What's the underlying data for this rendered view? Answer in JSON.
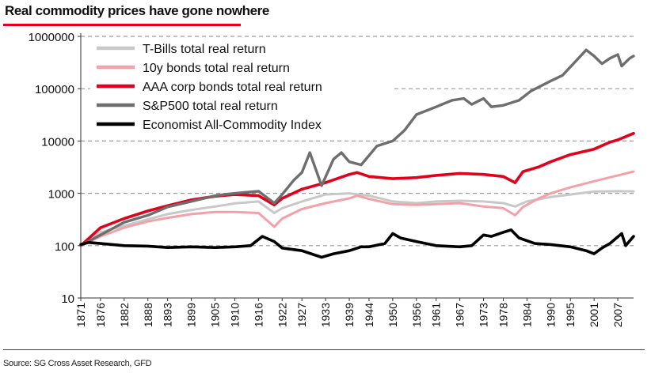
{
  "header": {
    "title": "Real commodity prices have gone nowhere"
  },
  "footer": {
    "source": "Source: SG Cross Asset Research, GFD"
  },
  "chart_data": {
    "type": "line",
    "title": "Real commodity prices have gone nowhere",
    "xlabel": "",
    "ylabel": "",
    "yscale": "log",
    "ylim": [
      10,
      1000000
    ],
    "xlim": [
      1871,
      2011
    ],
    "grid": "horizontal-dashed",
    "legend_position": "top-left",
    "yticks": [
      10,
      100,
      1000,
      10000,
      100000,
      1000000
    ],
    "ytick_labels": [
      "10",
      "100",
      "1000",
      "10000",
      "100000",
      "1000000"
    ],
    "xticks": [
      1871,
      1876,
      1882,
      1888,
      1893,
      1899,
      1905,
      1910,
      1916,
      1922,
      1927,
      1933,
      1939,
      1944,
      1950,
      1956,
      1961,
      1967,
      1973,
      1978,
      1984,
      1990,
      1995,
      2001,
      2007
    ],
    "xtick_labels": [
      "1871",
      "1876",
      "1882",
      "1888",
      "1893",
      "1899",
      "1905",
      "1910",
      "1916",
      "1922",
      "1927",
      "1933",
      "1939",
      "1944",
      "1950",
      "1956",
      "1961",
      "1967",
      "1973",
      "1978",
      "1984",
      "1990",
      "1995",
      "2001",
      "2007"
    ],
    "series": [
      {
        "name": "T-Bills total real return",
        "color": "#c8c8c8",
        "points": [
          [
            1871,
            100
          ],
          [
            1876,
            180
          ],
          [
            1882,
            240
          ],
          [
            1888,
            320
          ],
          [
            1893,
            400
          ],
          [
            1899,
            480
          ],
          [
            1905,
            560
          ],
          [
            1910,
            640
          ],
          [
            1916,
            700
          ],
          [
            1920,
            420
          ],
          [
            1922,
            520
          ],
          [
            1927,
            700
          ],
          [
            1933,
            950
          ],
          [
            1939,
            1000
          ],
          [
            1944,
            900
          ],
          [
            1950,
            700
          ],
          [
            1956,
            650
          ],
          [
            1961,
            700
          ],
          [
            1967,
            720
          ],
          [
            1973,
            700
          ],
          [
            1978,
            650
          ],
          [
            1981,
            560
          ],
          [
            1984,
            700
          ],
          [
            1990,
            850
          ],
          [
            1995,
            950
          ],
          [
            2001,
            1080
          ],
          [
            2007,
            1100
          ],
          [
            2011,
            1090
          ]
        ]
      },
      {
        "name": "10y bonds total real return",
        "color": "#f4a0a8",
        "points": [
          [
            1871,
            100
          ],
          [
            1876,
            150
          ],
          [
            1882,
            220
          ],
          [
            1888,
            290
          ],
          [
            1893,
            340
          ],
          [
            1899,
            400
          ],
          [
            1905,
            440
          ],
          [
            1910,
            440
          ],
          [
            1916,
            420
          ],
          [
            1920,
            230
          ],
          [
            1922,
            330
          ],
          [
            1927,
            500
          ],
          [
            1933,
            650
          ],
          [
            1939,
            800
          ],
          [
            1941,
            900
          ],
          [
            1944,
            780
          ],
          [
            1950,
            620
          ],
          [
            1956,
            600
          ],
          [
            1961,
            620
          ],
          [
            1967,
            650
          ],
          [
            1973,
            560
          ],
          [
            1978,
            520
          ],
          [
            1981,
            380
          ],
          [
            1983,
            550
          ],
          [
            1987,
            800
          ],
          [
            1990,
            1000
          ],
          [
            1995,
            1300
          ],
          [
            2001,
            1700
          ],
          [
            2007,
            2200
          ],
          [
            2011,
            2600
          ]
        ]
      },
      {
        "name": "AAA corp bonds total real return",
        "color": "#e2001a",
        "points": [
          [
            1871,
            100
          ],
          [
            1876,
            220
          ],
          [
            1882,
            330
          ],
          [
            1888,
            460
          ],
          [
            1893,
            580
          ],
          [
            1899,
            750
          ],
          [
            1905,
            880
          ],
          [
            1910,
            950
          ],
          [
            1916,
            900
          ],
          [
            1920,
            600
          ],
          [
            1922,
            800
          ],
          [
            1927,
            1200
          ],
          [
            1933,
            1600
          ],
          [
            1939,
            2300
          ],
          [
            1941,
            2500
          ],
          [
            1944,
            2100
          ],
          [
            1950,
            1900
          ],
          [
            1956,
            2000
          ],
          [
            1961,
            2200
          ],
          [
            1967,
            2400
          ],
          [
            1973,
            2300
          ],
          [
            1978,
            2100
          ],
          [
            1981,
            1600
          ],
          [
            1983,
            2600
          ],
          [
            1987,
            3200
          ],
          [
            1990,
            4000
          ],
          [
            1995,
            5500
          ],
          [
            2001,
            7000
          ],
          [
            2005,
            9500
          ],
          [
            2007,
            10500
          ],
          [
            2011,
            14000
          ]
        ]
      },
      {
        "name": "S&P500 total real return",
        "color": "#6e6e6e",
        "points": [
          [
            1871,
            100
          ],
          [
            1876,
            160
          ],
          [
            1882,
            280
          ],
          [
            1888,
            380
          ],
          [
            1893,
            550
          ],
          [
            1899,
            700
          ],
          [
            1905,
            900
          ],
          [
            1910,
            1000
          ],
          [
            1916,
            1100
          ],
          [
            1920,
            650
          ],
          [
            1922,
            950
          ],
          [
            1925,
            1800
          ],
          [
            1927,
            2500
          ],
          [
            1929,
            6000
          ],
          [
            1932,
            1400
          ],
          [
            1935,
            4500
          ],
          [
            1937,
            6000
          ],
          [
            1939,
            4000
          ],
          [
            1942,
            3500
          ],
          [
            1946,
            8000
          ],
          [
            1950,
            10000
          ],
          [
            1953,
            16000
          ],
          [
            1956,
            32000
          ],
          [
            1961,
            45000
          ],
          [
            1965,
            60000
          ],
          [
            1968,
            65000
          ],
          [
            1970,
            50000
          ],
          [
            1973,
            65000
          ],
          [
            1975,
            45000
          ],
          [
            1978,
            48000
          ],
          [
            1982,
            60000
          ],
          [
            1985,
            90000
          ],
          [
            1990,
            140000
          ],
          [
            1993,
            180000
          ],
          [
            1995,
            260000
          ],
          [
            1999,
            550000
          ],
          [
            2001,
            420000
          ],
          [
            2003,
            300000
          ],
          [
            2005,
            380000
          ],
          [
            2007,
            450000
          ],
          [
            2008,
            270000
          ],
          [
            2010,
            380000
          ],
          [
            2011,
            420000
          ]
        ]
      },
      {
        "name": "Economist All-Commodity Index",
        "color": "#000000",
        "points": [
          [
            1871,
            105
          ],
          [
            1873,
            115
          ],
          [
            1876,
            110
          ],
          [
            1882,
            100
          ],
          [
            1888,
            98
          ],
          [
            1893,
            92
          ],
          [
            1899,
            95
          ],
          [
            1905,
            92
          ],
          [
            1910,
            95
          ],
          [
            1914,
            100
          ],
          [
            1917,
            150
          ],
          [
            1920,
            120
          ],
          [
            1922,
            90
          ],
          [
            1927,
            80
          ],
          [
            1932,
            60
          ],
          [
            1935,
            70
          ],
          [
            1939,
            80
          ],
          [
            1942,
            95
          ],
          [
            1944,
            95
          ],
          [
            1948,
            110
          ],
          [
            1950,
            170
          ],
          [
            1952,
            140
          ],
          [
            1956,
            120
          ],
          [
            1961,
            100
          ],
          [
            1967,
            95
          ],
          [
            1970,
            100
          ],
          [
            1973,
            160
          ],
          [
            1975,
            150
          ],
          [
            1978,
            180
          ],
          [
            1980,
            200
          ],
          [
            1982,
            140
          ],
          [
            1986,
            110
          ],
          [
            1990,
            105
          ],
          [
            1995,
            95
          ],
          [
            1999,
            80
          ],
          [
            2001,
            70
          ],
          [
            2003,
            90
          ],
          [
            2005,
            110
          ],
          [
            2008,
            170
          ],
          [
            2009,
            100
          ],
          [
            2011,
            150
          ]
        ]
      }
    ]
  }
}
